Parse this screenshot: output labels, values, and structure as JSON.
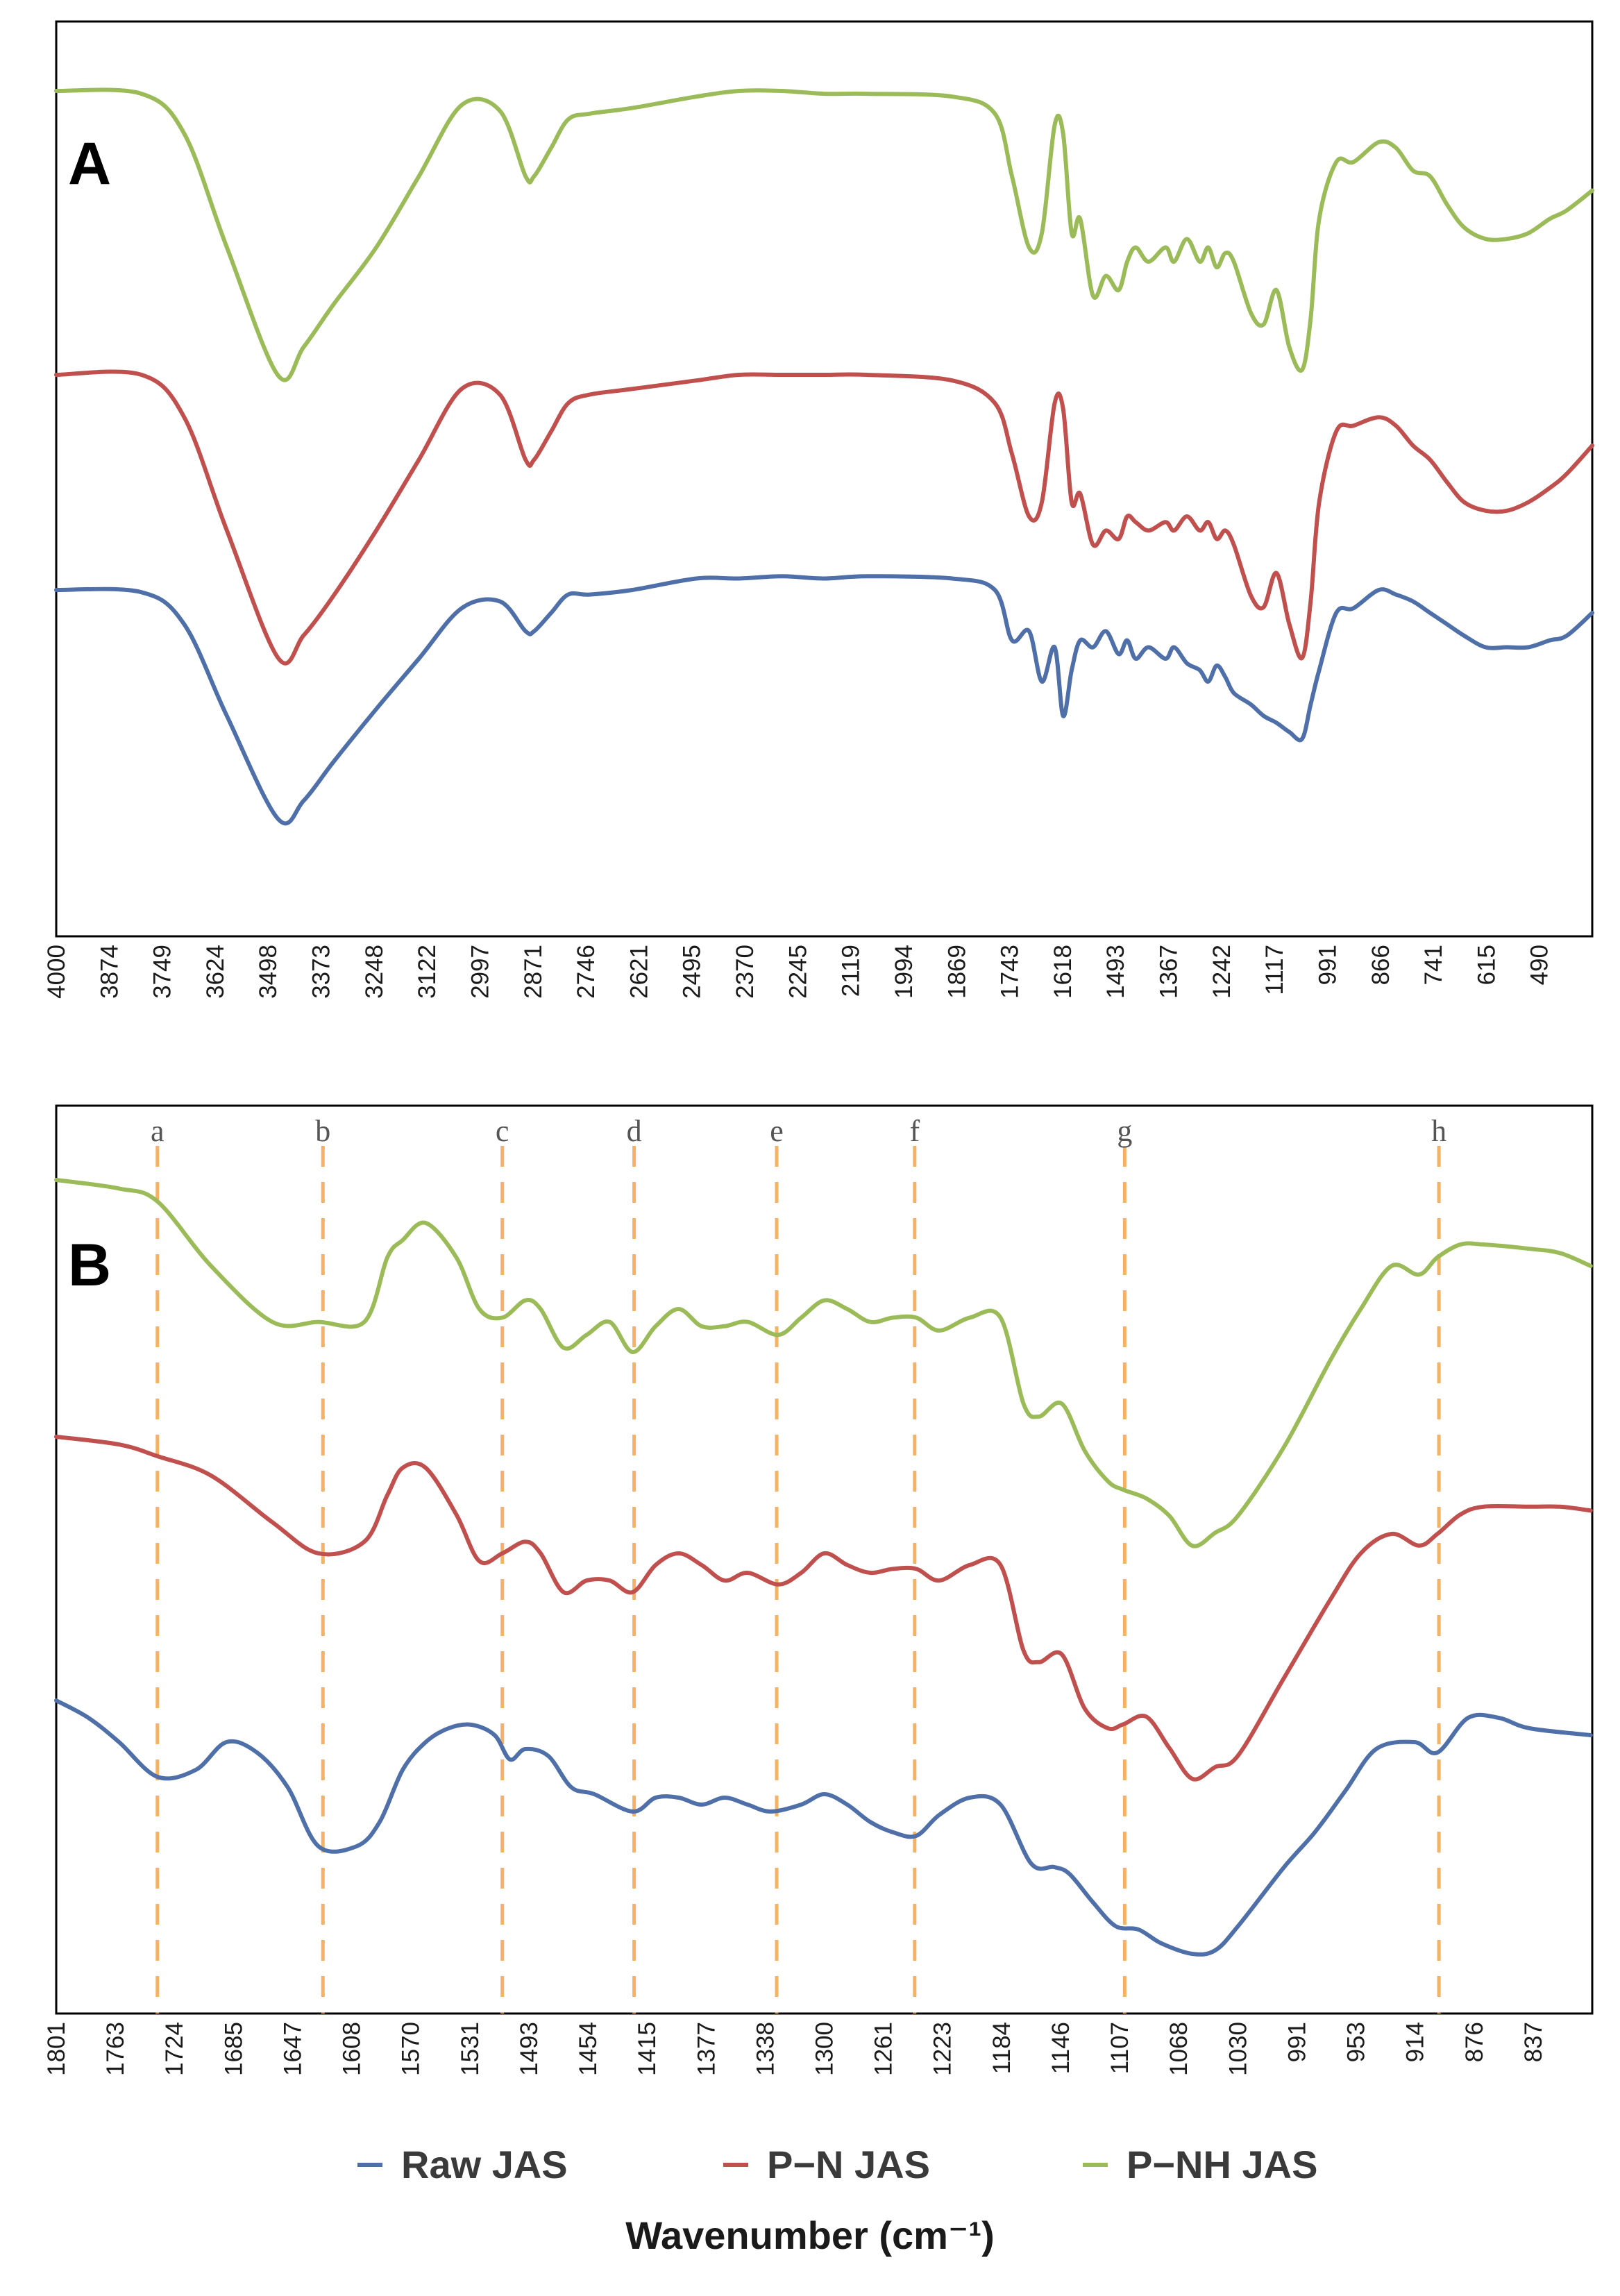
{
  "chart_data": [
    {
      "panel_label": "A",
      "type": "line",
      "x_range": [
        4000,
        400
      ],
      "x_ticks": [
        "4000",
        "3874",
        "3749",
        "3624",
        "3498",
        "3373",
        "3248",
        "3122",
        "2997",
        "2871",
        "2746",
        "2621",
        "2495",
        "2370",
        "2245",
        "2119",
        "1994",
        "1869",
        "1743",
        "1618",
        "1493",
        "1367",
        "1242",
        "1117",
        "991",
        "866",
        "741",
        "615",
        "490"
      ],
      "y_ticks": [],
      "ylabel": "",
      "series": [
        {
          "name": "P−NH JAS",
          "color": "#9bbb59",
          "x": [
            4000,
            3800,
            3700,
            3600,
            3480,
            3420,
            3350,
            3250,
            3150,
            3050,
            2960,
            2900,
            2880,
            2840,
            2800,
            2750,
            2650,
            2500,
            2400,
            2300,
            2200,
            2100,
            1900,
            1800,
            1760,
            1720,
            1690,
            1660,
            1640,
            1620,
            1600,
            1570,
            1540,
            1510,
            1490,
            1470,
            1440,
            1400,
            1380,
            1350,
            1320,
            1300,
            1280,
            1260,
            1240,
            1200,
            1170,
            1140,
            1110,
            1080,
            1060,
            1040,
            1000,
            960,
            900,
            860,
            820,
            780,
            740,
            700,
            650,
            600,
            550,
            500,
            460,
            400
          ],
          "y": [
            0.0,
            0.01,
            0.15,
            0.55,
            1.0,
            0.9,
            0.75,
            0.55,
            0.3,
            0.05,
            0.07,
            0.3,
            0.3,
            0.2,
            0.1,
            0.08,
            0.06,
            0.02,
            0.0,
            0.0,
            0.01,
            0.01,
            0.02,
            0.08,
            0.3,
            0.55,
            0.5,
            0.12,
            0.15,
            0.5,
            0.45,
            0.72,
            0.65,
            0.7,
            0.6,
            0.55,
            0.6,
            0.55,
            0.6,
            0.52,
            0.6,
            0.55,
            0.62,
            0.57,
            0.6,
            0.78,
            0.82,
            0.7,
            0.9,
            0.98,
            0.8,
            0.45,
            0.25,
            0.25,
            0.18,
            0.2,
            0.28,
            0.3,
            0.4,
            0.48,
            0.52,
            0.52,
            0.5,
            0.45,
            0.42,
            0.35
          ]
        },
        {
          "name": "P−N JAS",
          "color": "#c0504d",
          "x": [
            4000,
            3800,
            3700,
            3600,
            3480,
            3420,
            3350,
            3250,
            3150,
            3050,
            2960,
            2900,
            2880,
            2840,
            2800,
            2750,
            2650,
            2500,
            2400,
            2300,
            2200,
            2100,
            1900,
            1800,
            1760,
            1720,
            1690,
            1660,
            1640,
            1620,
            1600,
            1570,
            1540,
            1510,
            1490,
            1470,
            1440,
            1400,
            1380,
            1350,
            1320,
            1300,
            1280,
            1260,
            1240,
            1200,
            1170,
            1140,
            1110,
            1080,
            1060,
            1040,
            1000,
            960,
            900,
            860,
            820,
            780,
            740,
            700,
            650,
            600,
            550,
            500,
            460,
            400
          ],
          "y": [
            0.0,
            0.0,
            0.15,
            0.55,
            1.0,
            0.92,
            0.78,
            0.55,
            0.3,
            0.05,
            0.07,
            0.3,
            0.3,
            0.2,
            0.1,
            0.07,
            0.05,
            0.02,
            0.0,
            0.0,
            0.0,
            0.0,
            0.02,
            0.1,
            0.28,
            0.5,
            0.45,
            0.1,
            0.12,
            0.45,
            0.42,
            0.6,
            0.55,
            0.58,
            0.5,
            0.52,
            0.55,
            0.52,
            0.55,
            0.5,
            0.55,
            0.52,
            0.58,
            0.55,
            0.6,
            0.78,
            0.82,
            0.7,
            0.88,
            1.0,
            0.8,
            0.45,
            0.2,
            0.18,
            0.15,
            0.18,
            0.25,
            0.3,
            0.38,
            0.45,
            0.48,
            0.48,
            0.45,
            0.4,
            0.35,
            0.25
          ]
        },
        {
          "name": "Raw JAS",
          "color": "#4f6fa8",
          "x": [
            4000,
            3800,
            3700,
            3600,
            3480,
            3420,
            3350,
            3250,
            3150,
            3050,
            2960,
            2900,
            2880,
            2840,
            2800,
            2750,
            2650,
            2500,
            2400,
            2300,
            2200,
            2100,
            1900,
            1800,
            1760,
            1720,
            1690,
            1660,
            1640,
            1620,
            1600,
            1570,
            1540,
            1510,
            1490,
            1470,
            1440,
            1400,
            1380,
            1350,
            1320,
            1300,
            1280,
            1260,
            1240,
            1200,
            1170,
            1140,
            1110,
            1080,
            1060,
            1040,
            1000,
            960,
            900,
            860,
            820,
            780,
            740,
            700,
            650,
            600,
            550,
            500,
            460,
            400
          ],
          "y": [
            0.0,
            0.01,
            0.15,
            0.55,
            1.0,
            0.92,
            0.75,
            0.52,
            0.3,
            0.08,
            0.05,
            0.18,
            0.18,
            0.1,
            0.02,
            0.02,
            0.0,
            -0.05,
            -0.05,
            -0.06,
            -0.05,
            -0.06,
            -0.05,
            0.0,
            0.22,
            0.18,
            0.4,
            0.25,
            0.55,
            0.35,
            0.22,
            0.25,
            0.18,
            0.28,
            0.22,
            0.3,
            0.25,
            0.3,
            0.25,
            0.32,
            0.35,
            0.4,
            0.33,
            0.38,
            0.45,
            0.5,
            0.55,
            0.58,
            0.62,
            0.65,
            0.5,
            0.35,
            0.1,
            0.08,
            0.0,
            0.02,
            0.05,
            0.1,
            0.15,
            0.2,
            0.25,
            0.25,
            0.25,
            0.22,
            0.2,
            0.1
          ]
        }
      ]
    },
    {
      "panel_label": "B",
      "type": "line",
      "x_range": [
        1801,
        799
      ],
      "x_ticks": [
        "1801",
        "1763",
        "1724",
        "1685",
        "1647",
        "1608",
        "1570",
        "1531",
        "1493",
        "1454",
        "1415",
        "1377",
        "1338",
        "1300",
        "1261",
        "1223",
        "1184",
        "1146",
        "1107",
        "1068",
        "1030",
        "991",
        "953",
        "914",
        "876",
        "837"
      ],
      "y_ticks": [],
      "ylabel": "",
      "marker_lines": [
        {
          "label": "a",
          "x": 1735
        },
        {
          "label": "b",
          "x": 1627
        },
        {
          "label": "c",
          "x": 1510
        },
        {
          "label": "d",
          "x": 1424
        },
        {
          "label": "e",
          "x": 1331
        },
        {
          "label": "f",
          "x": 1241
        },
        {
          "label": "g",
          "x": 1104
        },
        {
          "label": "h",
          "x": 899
        }
      ],
      "series": [
        {
          "name": "P−NH JAS",
          "color": "#9bbb59",
          "x": [
            1801,
            1760,
            1735,
            1700,
            1660,
            1630,
            1600,
            1585,
            1575,
            1560,
            1540,
            1525,
            1510,
            1495,
            1485,
            1470,
            1455,
            1440,
            1425,
            1410,
            1395,
            1380,
            1365,
            1350,
            1330,
            1315,
            1300,
            1285,
            1270,
            1255,
            1240,
            1225,
            1205,
            1185,
            1170,
            1160,
            1145,
            1130,
            1115,
            1105,
            1090,
            1075,
            1060,
            1045,
            1030,
            1000,
            970,
            950,
            930,
            912,
            900,
            885,
            870,
            840,
            820,
            800
          ],
          "y": [
            0.0,
            0.02,
            0.05,
            0.2,
            0.33,
            0.33,
            0.33,
            0.18,
            0.14,
            0.1,
            0.18,
            0.3,
            0.32,
            0.28,
            0.3,
            0.39,
            0.36,
            0.33,
            0.4,
            0.34,
            0.3,
            0.34,
            0.34,
            0.33,
            0.36,
            0.32,
            0.28,
            0.3,
            0.33,
            0.32,
            0.32,
            0.35,
            0.32,
            0.32,
            0.52,
            0.55,
            0.52,
            0.63,
            0.7,
            0.72,
            0.74,
            0.78,
            0.85,
            0.82,
            0.78,
            0.62,
            0.42,
            0.3,
            0.2,
            0.22,
            0.18,
            0.15,
            0.15,
            0.16,
            0.17,
            0.2
          ]
        },
        {
          "name": "P−N JAS",
          "color": "#c0504d",
          "x": [
            1801,
            1760,
            1735,
            1700,
            1660,
            1630,
            1600,
            1585,
            1575,
            1560,
            1540,
            1525,
            1510,
            1495,
            1485,
            1470,
            1455,
            1440,
            1425,
            1410,
            1395,
            1380,
            1365,
            1350,
            1330,
            1315,
            1300,
            1285,
            1270,
            1255,
            1240,
            1225,
            1205,
            1185,
            1170,
            1160,
            1145,
            1130,
            1115,
            1105,
            1090,
            1075,
            1060,
            1045,
            1030,
            1000,
            970,
            950,
            930,
            912,
            900,
            885,
            870,
            840,
            820,
            800
          ],
          "y": [
            0.0,
            0.02,
            0.05,
            0.1,
            0.22,
            0.3,
            0.27,
            0.15,
            0.08,
            0.08,
            0.2,
            0.32,
            0.3,
            0.27,
            0.3,
            0.4,
            0.37,
            0.37,
            0.4,
            0.33,
            0.3,
            0.33,
            0.37,
            0.35,
            0.38,
            0.35,
            0.3,
            0.33,
            0.35,
            0.34,
            0.34,
            0.37,
            0.33,
            0.33,
            0.55,
            0.58,
            0.56,
            0.7,
            0.75,
            0.74,
            0.72,
            0.8,
            0.88,
            0.85,
            0.82,
            0.62,
            0.42,
            0.3,
            0.25,
            0.28,
            0.25,
            0.2,
            0.18,
            0.18,
            0.18,
            0.19
          ]
        },
        {
          "name": "Raw JAS",
          "color": "#4f6fa8",
          "x": [
            1801,
            1780,
            1760,
            1735,
            1710,
            1690,
            1670,
            1650,
            1630,
            1605,
            1590,
            1575,
            1560,
            1545,
            1530,
            1515,
            1505,
            1495,
            1480,
            1465,
            1450,
            1425,
            1410,
            1395,
            1380,
            1365,
            1350,
            1335,
            1315,
            1300,
            1285,
            1270,
            1255,
            1240,
            1225,
            1205,
            1185,
            1165,
            1150,
            1140,
            1125,
            1110,
            1095,
            1080,
            1060,
            1045,
            1030,
            1000,
            980,
            960,
            940,
            915,
            900,
            880,
            860,
            840,
            800
          ],
          "y": [
            0.0,
            0.05,
            0.12,
            0.22,
            0.2,
            0.12,
            0.15,
            0.25,
            0.42,
            0.42,
            0.35,
            0.2,
            0.12,
            0.08,
            0.07,
            0.1,
            0.17,
            0.14,
            0.16,
            0.25,
            0.27,
            0.32,
            0.28,
            0.28,
            0.3,
            0.28,
            0.3,
            0.32,
            0.3,
            0.27,
            0.3,
            0.35,
            0.38,
            0.39,
            0.33,
            0.28,
            0.3,
            0.47,
            0.48,
            0.5,
            0.58,
            0.65,
            0.66,
            0.7,
            0.73,
            0.72,
            0.65,
            0.48,
            0.38,
            0.26,
            0.14,
            0.12,
            0.15,
            0.05,
            0.05,
            0.08,
            0.1
          ]
        }
      ]
    }
  ],
  "legend": [
    {
      "label": "Raw JAS",
      "color": "#4f6fa8"
    },
    {
      "label": "P−N JAS",
      "color": "#c0504d"
    },
    {
      "label": "P−NH JAS",
      "color": "#9bbb59"
    }
  ],
  "xlabel": "Wavenumber (cm⁻¹)",
  "colors": {
    "marker_line": "#f4b266",
    "axis": "#000000"
  }
}
